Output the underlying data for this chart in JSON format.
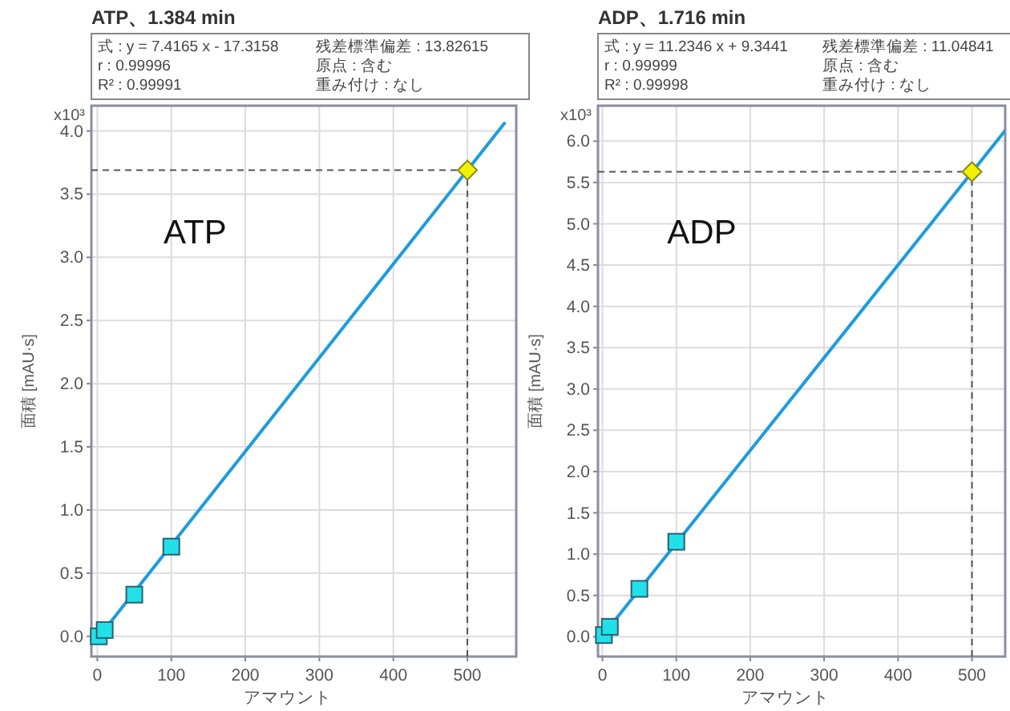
{
  "chart_data": [
    {
      "type": "line",
      "title": "ATP、1.384 min",
      "xlabel": "アマウント",
      "ylabel": "面積 [mAU·s]",
      "xlim": [
        -8,
        566
      ],
      "ylim": [
        -0.16,
        4.2
      ],
      "xticks": [
        0,
        100,
        200,
        300,
        400,
        500
      ],
      "yticks": [
        {
          "value": 0,
          "label": "0.0"
        },
        {
          "value": 0.5,
          "label": "0.5"
        },
        {
          "value": 1,
          "label": "1.0"
        },
        {
          "value": 1.5,
          "label": "1.5"
        },
        {
          "value": 2,
          "label": "2.0"
        },
        {
          "value": 2.5,
          "label": "2.5"
        },
        {
          "value": 3,
          "label": "3.0"
        },
        {
          "value": 3.5,
          "label": "3.5"
        },
        {
          "value": 4,
          "label": "4.0"
        }
      ],
      "grid": true,
      "series": [
        {
          "color": "#1e9be0",
          "x": [
            0,
            550
          ],
          "values": [
            -0.02,
            4.06
          ]
        },
        {
          "type": "scatter",
          "marker": "square",
          "color": "#22e0e8",
          "x": [
            2,
            10,
            50,
            100
          ],
          "values": [
            0.0,
            0.05,
            0.33,
            0.71
          ]
        },
        {
          "type": "scatter",
          "marker": "diamond",
          "color": "#f2f200",
          "x": [
            500
          ],
          "values": [
            3.69
          ]
        }
      ],
      "ref_lines": [
        {
          "axis": "y",
          "value": 3.69,
          "line_style": "dashed",
          "color": "#555555"
        },
        {
          "axis": "x",
          "value": 500,
          "line_style": "dashed",
          "color": "#555555"
        }
      ],
      "annotations": [
        "式 : y = 7.4165 x - 17.3158",
        "r : 0.99996",
        "R² : 0.99991",
        "残差標準偏差 : 13.82615",
        "原点 : 含む",
        "重み付け : なし",
        "ATP",
        "x10³"
      ]
    },
    {
      "type": "line",
      "title": "ADP、1.716 min",
      "xlabel": "アマウント",
      "ylabel": "面積 [mAU·s]",
      "xlim": [
        -6,
        545
      ],
      "ylim": [
        -0.24,
        6.43
      ],
      "xticks": [
        0,
        100,
        200,
        300,
        400,
        500
      ],
      "yticks": [
        {
          "value": 0,
          "label": "0.0"
        },
        {
          "value": 0.5,
          "label": "0.5"
        },
        {
          "value": 1,
          "label": "1.0"
        },
        {
          "value": 1.5,
          "label": "1.5"
        },
        {
          "value": 2,
          "label": "2.0"
        },
        {
          "value": 2.5,
          "label": "2.5"
        },
        {
          "value": 3,
          "label": "3.0"
        },
        {
          "value": 3.5,
          "label": "3.5"
        },
        {
          "value": 4,
          "label": "4.0"
        },
        {
          "value": 4.5,
          "label": "4.5"
        },
        {
          "value": 5,
          "label": "5.0"
        },
        {
          "value": 5.5,
          "label": "5.5"
        },
        {
          "value": 6,
          "label": "6.0"
        }
      ],
      "grid": true,
      "series": [
        {
          "color": "#1e9be0",
          "x": [
            0,
            545
          ],
          "values": [
            0.01,
            6.13
          ]
        },
        {
          "type": "scatter",
          "marker": "square",
          "color": "#22e0e8",
          "x": [
            2,
            10,
            50,
            100
          ],
          "values": [
            0.02,
            0.12,
            0.58,
            1.15
          ]
        },
        {
          "type": "scatter",
          "marker": "diamond",
          "color": "#f2f200",
          "x": [
            500
          ],
          "values": [
            5.63
          ]
        }
      ],
      "ref_lines": [
        {
          "axis": "y",
          "value": 5.63,
          "line_style": "dashed",
          "color": "#555555"
        },
        {
          "axis": "x",
          "value": 500,
          "line_style": "dashed",
          "color": "#555555"
        }
      ],
      "annotations": [
        "式 : y = 11.2346 x + 9.3441",
        "r : 0.99999",
        "R² : 0.99998",
        "残差標準偏差 : 11.04841",
        "原点 : 含む",
        "重み付け : なし",
        "ADP",
        "x10³"
      ]
    }
  ]
}
